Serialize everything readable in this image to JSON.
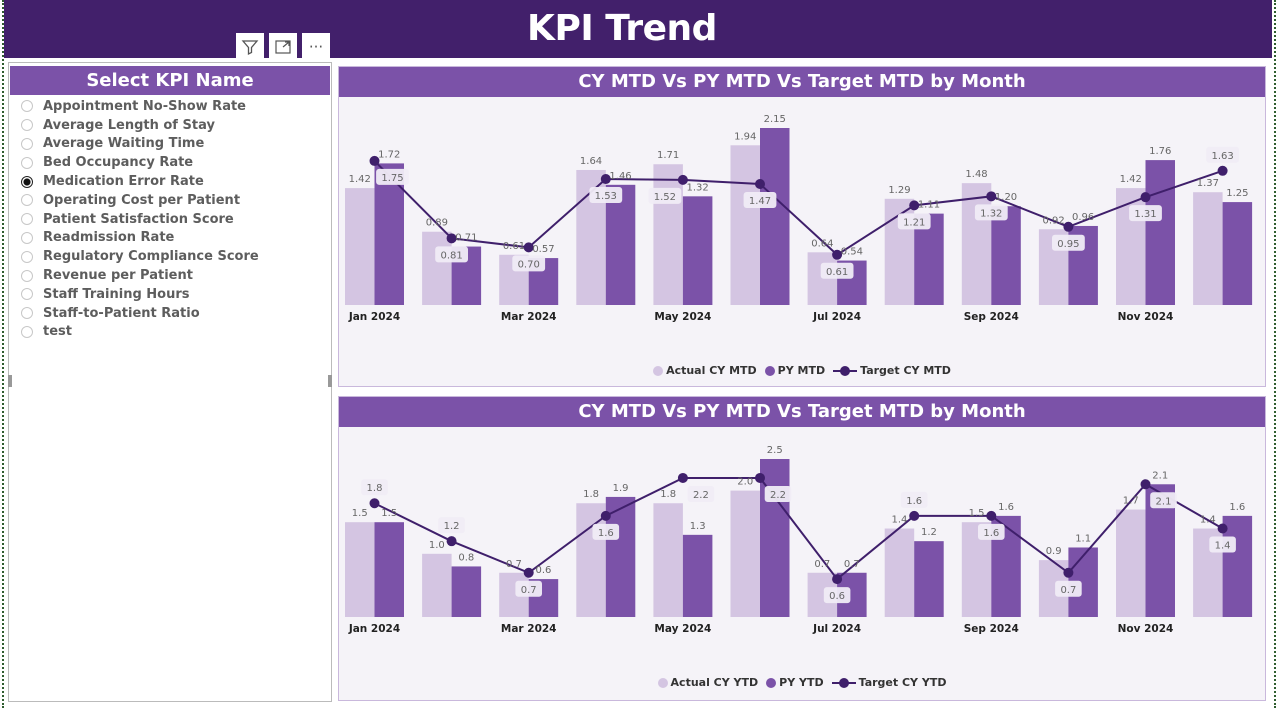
{
  "header": {
    "title": "KPI Trend"
  },
  "toolbar": {
    "icons": [
      "filter-icon",
      "focus-mode-icon",
      "more-options-icon"
    ],
    "more_label": "···"
  },
  "slicer": {
    "title": "Select KPI Name",
    "items": [
      {
        "label": "Appointment No-Show Rate",
        "selected": false
      },
      {
        "label": "Average Length of Stay",
        "selected": false
      },
      {
        "label": "Average Waiting Time",
        "selected": false
      },
      {
        "label": "Bed Occupancy Rate",
        "selected": false
      },
      {
        "label": "Medication Error Rate",
        "selected": true
      },
      {
        "label": "Operating Cost per Patient",
        "selected": false
      },
      {
        "label": "Patient Satisfaction Score",
        "selected": false
      },
      {
        "label": "Readmission Rate",
        "selected": false
      },
      {
        "label": "Regulatory Compliance Score",
        "selected": false
      },
      {
        "label": "Revenue per Patient",
        "selected": false
      },
      {
        "label": "Staff Training Hours",
        "selected": false
      },
      {
        "label": "Staff-to-Patient Ratio",
        "selected": false
      },
      {
        "label": "test",
        "selected": false
      }
    ]
  },
  "colors": {
    "header": "#42206b",
    "accent": "#7b52a8",
    "actual": "#d4c5e2",
    "py": "#7b52a8",
    "target": "#3f1f6b"
  },
  "chart_data": [
    {
      "type": "bar",
      "title": "CY MTD Vs PY MTD Vs Target MTD by Month",
      "categories": [
        "Jan 2024",
        "Feb 2024",
        "Mar 2024",
        "Apr 2024",
        "May 2024",
        "Jun 2024",
        "Jul 2024",
        "Aug 2024",
        "Sep 2024",
        "Oct 2024",
        "Nov 2024",
        "Dec 2024"
      ],
      "tick_labels": [
        "Jan 2024",
        "",
        "Mar 2024",
        "",
        "May 2024",
        "",
        "Jul 2024",
        "",
        "Sep 2024",
        "",
        "Nov 2024",
        ""
      ],
      "decimals": 2,
      "legend_position": "bottom",
      "grid": false,
      "series": [
        {
          "name": "Actual CY MTD",
          "kind": "bar",
          "values": [
            1.42,
            0.89,
            0.61,
            1.64,
            1.71,
            1.94,
            0.64,
            1.29,
            1.48,
            0.92,
            1.42,
            1.37
          ]
        },
        {
          "name": "PY MTD",
          "kind": "bar",
          "values": [
            1.72,
            0.71,
            0.57,
            1.46,
            1.32,
            2.15,
            0.54,
            1.11,
            1.2,
            0.96,
            1.76,
            1.25
          ]
        },
        {
          "name": "Target CY MTD",
          "kind": "line",
          "values": [
            1.75,
            0.81,
            0.7,
            1.53,
            1.52,
            1.47,
            0.61,
            1.21,
            1.32,
            0.95,
            1.31,
            1.63
          ]
        }
      ]
    },
    {
      "type": "bar",
      "title": "CY MTD Vs PY MTD Vs Target MTD by Month",
      "categories": [
        "Jan 2024",
        "Feb 2024",
        "Mar 2024",
        "Apr 2024",
        "May 2024",
        "Jun 2024",
        "Jul 2024",
        "Aug 2024",
        "Sep 2024",
        "Oct 2024",
        "Nov 2024",
        "Dec 2024"
      ],
      "tick_labels": [
        "Jan 2024",
        "",
        "Mar 2024",
        "",
        "May 2024",
        "",
        "Jul 2024",
        "",
        "Sep 2024",
        "",
        "Nov 2024",
        ""
      ],
      "decimals": 1,
      "legend_position": "bottom",
      "grid": false,
      "series": [
        {
          "name": "Actual CY YTD",
          "kind": "bar",
          "values": [
            1.5,
            1.0,
            0.7,
            1.8,
            1.8,
            2.0,
            0.7,
            1.4,
            1.5,
            0.9,
            1.7,
            1.4
          ]
        },
        {
          "name": "PY YTD",
          "kind": "bar",
          "values": [
            1.5,
            0.8,
            0.6,
            1.9,
            1.3,
            2.5,
            0.7,
            1.2,
            1.6,
            1.1,
            2.1,
            1.6
          ]
        },
        {
          "name": "Target CY YTD",
          "kind": "line",
          "values": [
            1.8,
            1.2,
            0.7,
            1.6,
            2.2,
            2.2,
            0.6,
            1.6,
            1.6,
            0.7,
            2.1,
            1.4
          ]
        }
      ]
    }
  ]
}
